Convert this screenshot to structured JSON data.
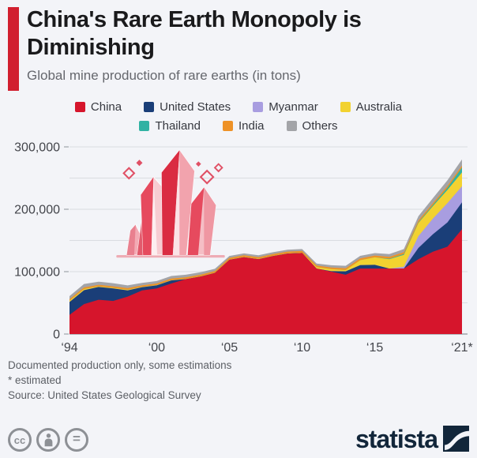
{
  "header": {
    "title": "China's Rare Earth Monopoly is Diminishing",
    "subtitle": "Global mine production of rare earths (in tons)",
    "accent_color": "#d11f2f"
  },
  "footer": {
    "note1": "Documented production only, some estimations",
    "note2": "* estimated",
    "source": "Source: United States Geological Survey",
    "brand": "statista",
    "license_icons": [
      "cc-icon",
      "cc-by-attribution-icon",
      "cc-nd-equal-icon"
    ]
  },
  "chart_data": {
    "type": "area",
    "stacked": true,
    "title": "Global mine production of rare earths (in tons)",
    "xlabel": "",
    "ylabel": "tons",
    "grid": true,
    "grid_step": 50000,
    "ylim": [
      0,
      300000
    ],
    "y_ticks": [
      0,
      100000,
      200000,
      300000
    ],
    "y_tick_labels": [
      "0",
      "100,000",
      "200,000",
      "300,000"
    ],
    "x_tick_years": [
      1994,
      2000,
      2005,
      2010,
      2015,
      2021
    ],
    "x_tick_labels": [
      "‘94",
      "‘00",
      "‘05",
      "‘10",
      "‘15",
      "‘21*"
    ],
    "legend_position": "top",
    "legend_rows": [
      4,
      3
    ],
    "x": [
      1994,
      1995,
      1996,
      1997,
      1998,
      1999,
      2000,
      2001,
      2002,
      2003,
      2004,
      2005,
      2006,
      2007,
      2008,
      2009,
      2010,
      2011,
      2012,
      2013,
      2014,
      2015,
      2016,
      2017,
      2018,
      2019,
      2020,
      2021
    ],
    "series": [
      {
        "name": "China",
        "color": "#d6152c",
        "values": [
          30600,
          48000,
          55000,
          53000,
          60000,
          70000,
          73000,
          81000,
          88000,
          92000,
          98000,
          119000,
          123000,
          120000,
          125000,
          129000,
          130000,
          105000,
          100000,
          95000,
          105000,
          105000,
          105000,
          105000,
          120000,
          132000,
          140000,
          168000
        ]
      },
      {
        "name": "United States",
        "color": "#1a3e78",
        "values": [
          20700,
          22200,
          20400,
          20000,
          10000,
          5000,
          5000,
          5000,
          0,
          0,
          0,
          0,
          0,
          0,
          0,
          0,
          0,
          0,
          800,
          5500,
          5400,
          5900,
          0,
          0,
          18000,
          28000,
          39000,
          43000
        ]
      },
      {
        "name": "Myanmar",
        "color": "#a89de0",
        "values": [
          0,
          0,
          0,
          0,
          0,
          0,
          0,
          0,
          0,
          0,
          0,
          0,
          0,
          0,
          0,
          0,
          0,
          0,
          0,
          0,
          0,
          0,
          0,
          3000,
          19000,
          25000,
          31000,
          26000
        ]
      },
      {
        "name": "Australia",
        "color": "#f2d230",
        "values": [
          2000,
          2000,
          1000,
          1000,
          1000,
          500,
          500,
          500,
          500,
          500,
          500,
          500,
          500,
          500,
          500,
          500,
          500,
          2200,
          3200,
          2000,
          8000,
          12000,
          15000,
          19000,
          21000,
          20000,
          21000,
          22000
        ]
      },
      {
        "name": "Thailand",
        "color": "#30b2a3",
        "values": [
          0,
          0,
          0,
          0,
          0,
          0,
          0,
          0,
          0,
          0,
          0,
          0,
          0,
          0,
          0,
          0,
          0,
          0,
          0,
          0,
          0,
          0,
          800,
          1300,
          1000,
          1900,
          3600,
          8000
        ]
      },
      {
        "name": "India",
        "color": "#ee9227",
        "values": [
          2500,
          2500,
          2500,
          2500,
          2500,
          2500,
          2500,
          2500,
          2500,
          2500,
          2500,
          2700,
          2700,
          2700,
          2700,
          2700,
          2700,
          2700,
          2700,
          2900,
          2900,
          2900,
          2900,
          2900,
          2900,
          2900,
          2900,
          2900
        ]
      },
      {
        "name": "Others",
        "color": "#a3a4a8",
        "values": [
          5000,
          5500,
          5000,
          5000,
          4500,
          4000,
          4000,
          4000,
          4000,
          4000,
          3500,
          3000,
          3000,
          3000,
          3000,
          3000,
          3000,
          3000,
          3500,
          4000,
          4000,
          4000,
          4500,
          5000,
          7000,
          8000,
          9000,
          10000
        ]
      }
    ]
  }
}
